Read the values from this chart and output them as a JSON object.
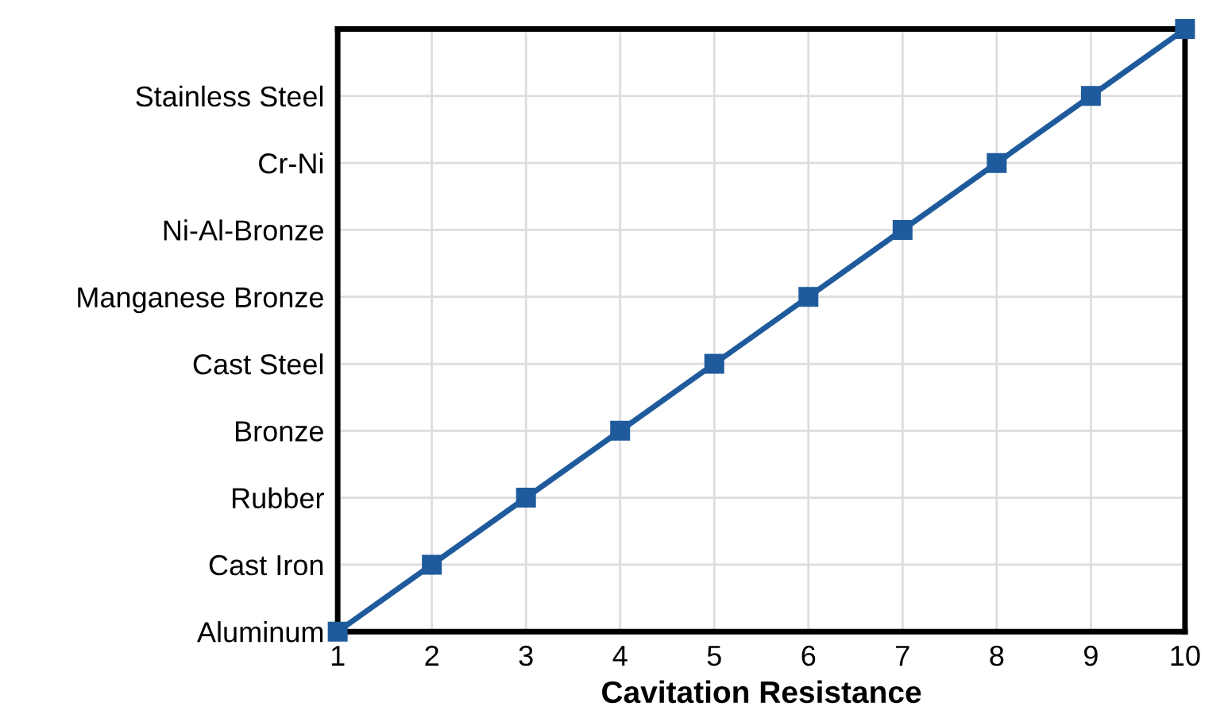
{
  "chart_data": {
    "type": "line",
    "orientation": "horizontal",
    "categories": [
      null,
      "Stainless Steel",
      "Cr-Ni",
      "Ni-Al-Bronze",
      "Manganese Bronze",
      "Cast Steel",
      "Bronze",
      "Rubber",
      "Cast Iron",
      "Aluminum"
    ],
    "series": [
      {
        "color": "#1f5b9c",
        "values": [
          10,
          9,
          8,
          7,
          6,
          5,
          4,
          3,
          2,
          1
        ]
      }
    ],
    "xlabel": "Cavitation Resistance",
    "xlim": [
      1,
      10
    ],
    "xticks": [
      1,
      2,
      3,
      4,
      5,
      6,
      7,
      8,
      9,
      10
    ],
    "grid": true,
    "marker": "square",
    "line_style": "solid"
  }
}
